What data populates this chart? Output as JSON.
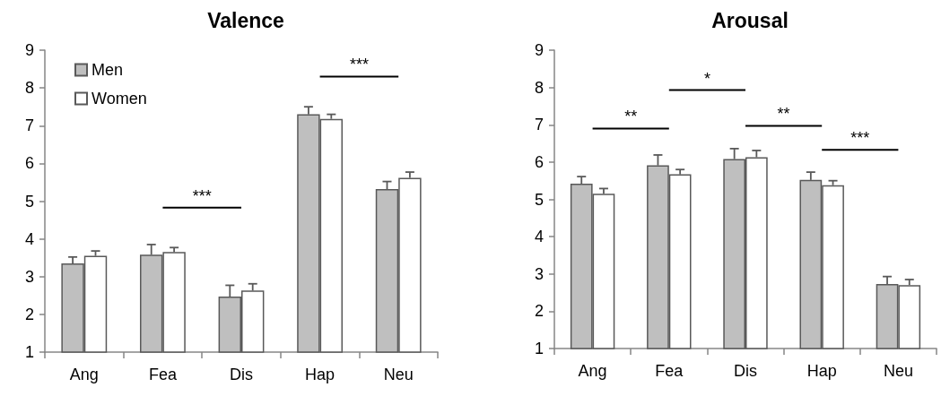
{
  "chart_data": [
    {
      "type": "bar",
      "title": "Valence",
      "categories": [
        "Ang",
        "Fea",
        "Dis",
        "Hap",
        "Neu"
      ],
      "series": [
        {
          "name": "Men",
          "color": "#bfbfbf",
          "values": [
            3.35,
            3.58,
            2.47,
            7.3,
            5.32
          ],
          "errors": [
            0.17,
            0.27,
            0.3,
            0.2,
            0.2
          ]
        },
        {
          "name": "Women",
          "color": "#ffffff",
          "values": [
            3.55,
            3.65,
            2.63,
            7.18,
            5.62
          ],
          "errors": [
            0.13,
            0.12,
            0.18,
            0.12,
            0.15
          ]
        }
      ],
      "ylim": [
        1,
        9
      ],
      "yticks": [
        1,
        2,
        3,
        4,
        5,
        6,
        7,
        8,
        9
      ],
      "grid": false,
      "legend": "top left",
      "annotations": [
        "***",
        "***"
      ]
    },
    {
      "type": "bar",
      "title": "Arousal",
      "categories": [
        "Ang",
        "Fea",
        "Dis",
        "Hap",
        "Neu"
      ],
      "series": [
        {
          "color": "#bfbfbf",
          "values": [
            5.42,
            5.91,
            6.08,
            5.52,
            2.73
          ],
          "errors": [
            0.19,
            0.28,
            0.28,
            0.21,
            0.2
          ]
        },
        {
          "color": "#ffffff",
          "values": [
            5.15,
            5.67,
            6.13,
            5.38,
            2.7
          ],
          "errors": [
            0.14,
            0.13,
            0.18,
            0.12,
            0.15
          ]
        }
      ],
      "ylim": [
        1,
        9
      ],
      "yticks": [
        1,
        2,
        3,
        4,
        5,
        6,
        7,
        8,
        9
      ],
      "grid": false,
      "legend": false,
      "annotations": [
        "**",
        "*",
        "**",
        "***"
      ]
    }
  ]
}
